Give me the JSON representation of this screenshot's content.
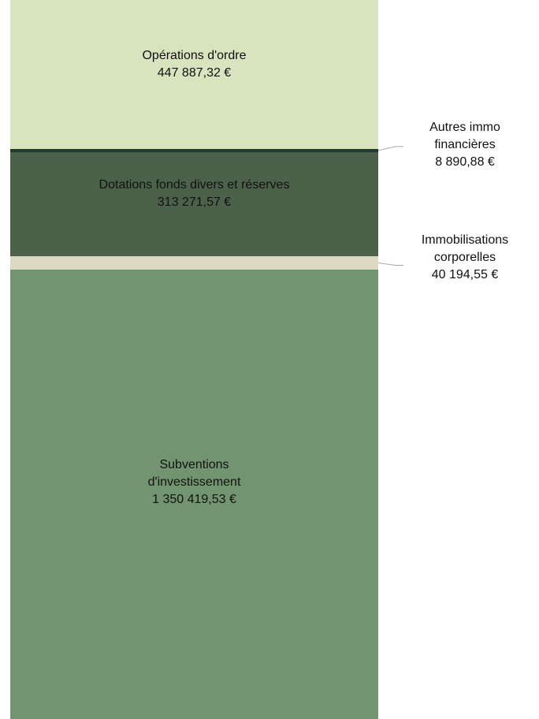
{
  "chart_data": {
    "type": "stacked_bar",
    "categories": [
      "Opérations d'ordre",
      "Autres immo financières",
      "Dotations fonds divers et réserves",
      "Immobilisations corporelles",
      "Subventions d'investissement"
    ],
    "values": [
      447887.32,
      8890.88,
      313271.57,
      40194.55,
      1350419.53
    ],
    "value_labels": [
      "447 887,32 €",
      "8 890,88 €",
      "313 271,57 €",
      "40 194,55 €",
      "1 350 419,53 €"
    ],
    "colors": [
      "#d7e4bd",
      "#1e3b30",
      "#4b614a",
      "#ddd8c1",
      "#739470"
    ]
  }
}
